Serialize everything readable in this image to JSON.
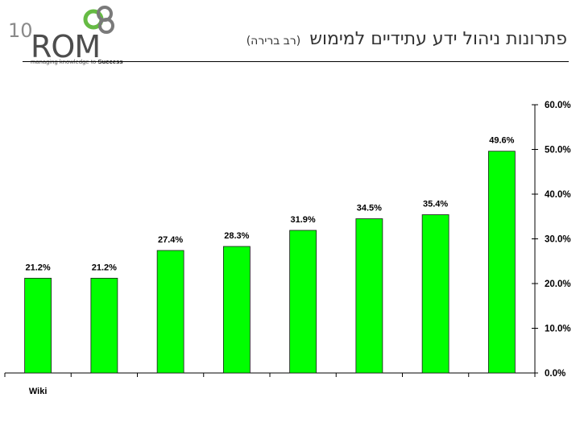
{
  "header": {
    "title": "פתרונות ניהול ידע עתידיים למימוש",
    "subtitle": "(רב ברירה)",
    "logo_number": "10",
    "logo_name": "ROM",
    "logo_tagline_prefix": "managing knowledge to ",
    "logo_tagline_bold": "Success"
  },
  "colors": {
    "bar": "#00ff00",
    "bar_stroke": "#1a1a1a",
    "axis": "#000000",
    "logo_green": "#66bb44"
  },
  "chart_data": {
    "type": "bar",
    "categories": [
      "Wiki",
      "",
      "",
      "",
      "",
      "",
      "",
      ""
    ],
    "values": [
      21.2,
      21.2,
      27.4,
      28.3,
      31.9,
      34.5,
      35.4,
      49.6
    ],
    "data_labels": [
      "21.2%",
      "21.2%",
      "27.4%",
      "28.3%",
      "31.9%",
      "34.5%",
      "35.4%",
      "49.6%"
    ],
    "y_ticks": [
      "0.0%",
      "10.0%",
      "20.0%",
      "30.0%",
      "40.0%",
      "50.0%",
      "60.0%"
    ],
    "ylim": [
      0,
      60
    ],
    "y_axis_position": "right",
    "grid": false,
    "legend": "none",
    "title": "",
    "xlabel": "",
    "ylabel": ""
  }
}
